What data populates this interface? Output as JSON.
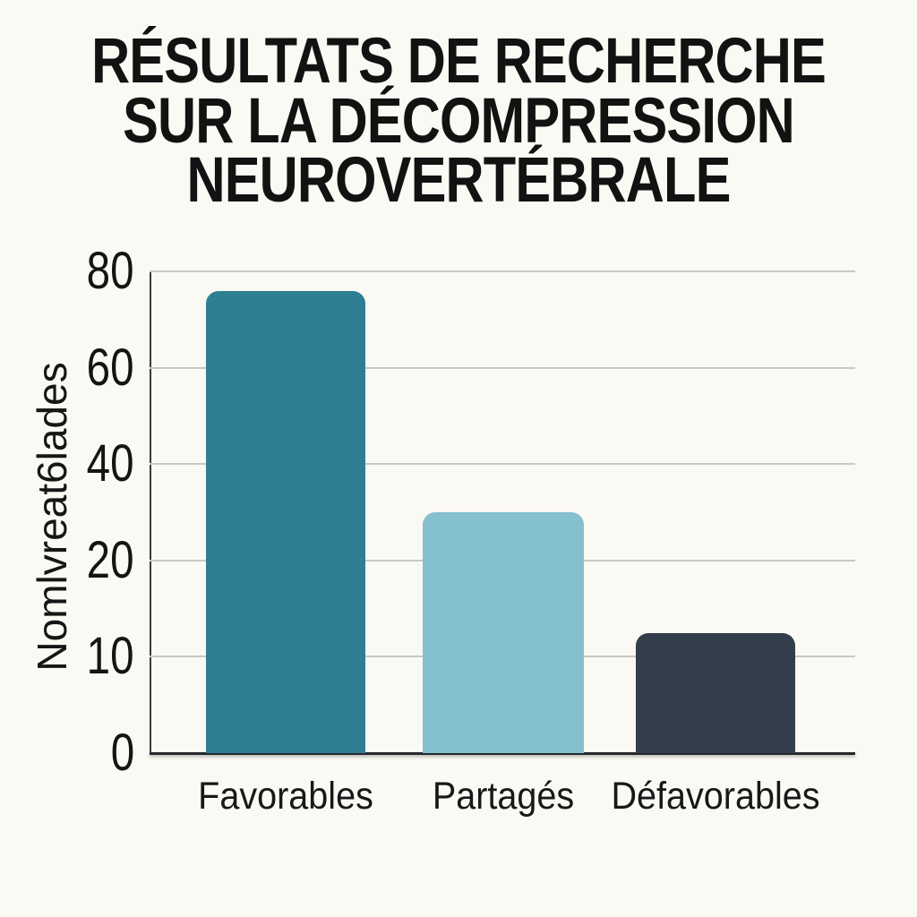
{
  "chart_data": {
    "type": "bar",
    "title_lines": [
      "RÉSULTATS DE RECHERCHE",
      "SUR LA DÉCOMPRESSION",
      "NEUROVERTÉBRALE"
    ],
    "categories": [
      "Favorables",
      "Partagés",
      "Défavorables"
    ],
    "values": [
      76,
      30,
      12.5
    ],
    "bar_colors": [
      "#2E7F93",
      "#85C0CF",
      "#333E4B"
    ],
    "ylabel": "Nomlvreat6lades",
    "xlabel": "",
    "yticks": [
      80,
      60,
      40,
      20,
      10,
      0
    ],
    "ytick_labels": [
      "80",
      "60",
      "40",
      "20",
      "10",
      "0"
    ],
    "ylim": [
      0,
      80
    ],
    "grid": "horizontal",
    "legend_position": "none"
  },
  "colors": {
    "background": "#FBF9F3",
    "title_text": "#121212",
    "tick_text": "#141414",
    "gridline": "#C9C8C3",
    "axis_line": "#26282B"
  }
}
